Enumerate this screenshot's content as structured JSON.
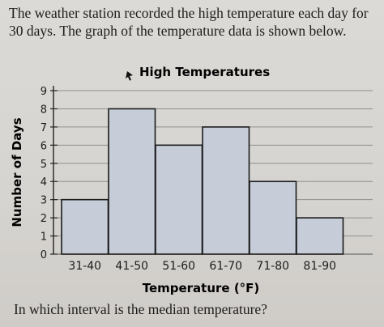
{
  "prompt": "The weather station recorded the high temperature each day for 30 days. The graph of the temperature data is shown below.",
  "question": "In which interval is the median temperature?",
  "colors": {
    "bar_fill": "#c6cdd8",
    "bar_stroke": "#1b1b1b",
    "grid": "#8f8f8f",
    "background": "#dad8d4"
  },
  "chart_data": {
    "type": "bar",
    "title": "High Temperatures",
    "xlabel": "Temperature (°F)",
    "ylabel": "Number of Days",
    "categories": [
      "31-40",
      "41-50",
      "51-60",
      "61-70",
      "71-80",
      "81-90"
    ],
    "values": [
      3,
      8,
      6,
      7,
      4,
      2
    ],
    "ylim": [
      0,
      9
    ],
    "yticks": [
      0,
      1,
      2,
      3,
      4,
      5,
      6,
      7,
      8,
      9
    ],
    "grid": true
  }
}
